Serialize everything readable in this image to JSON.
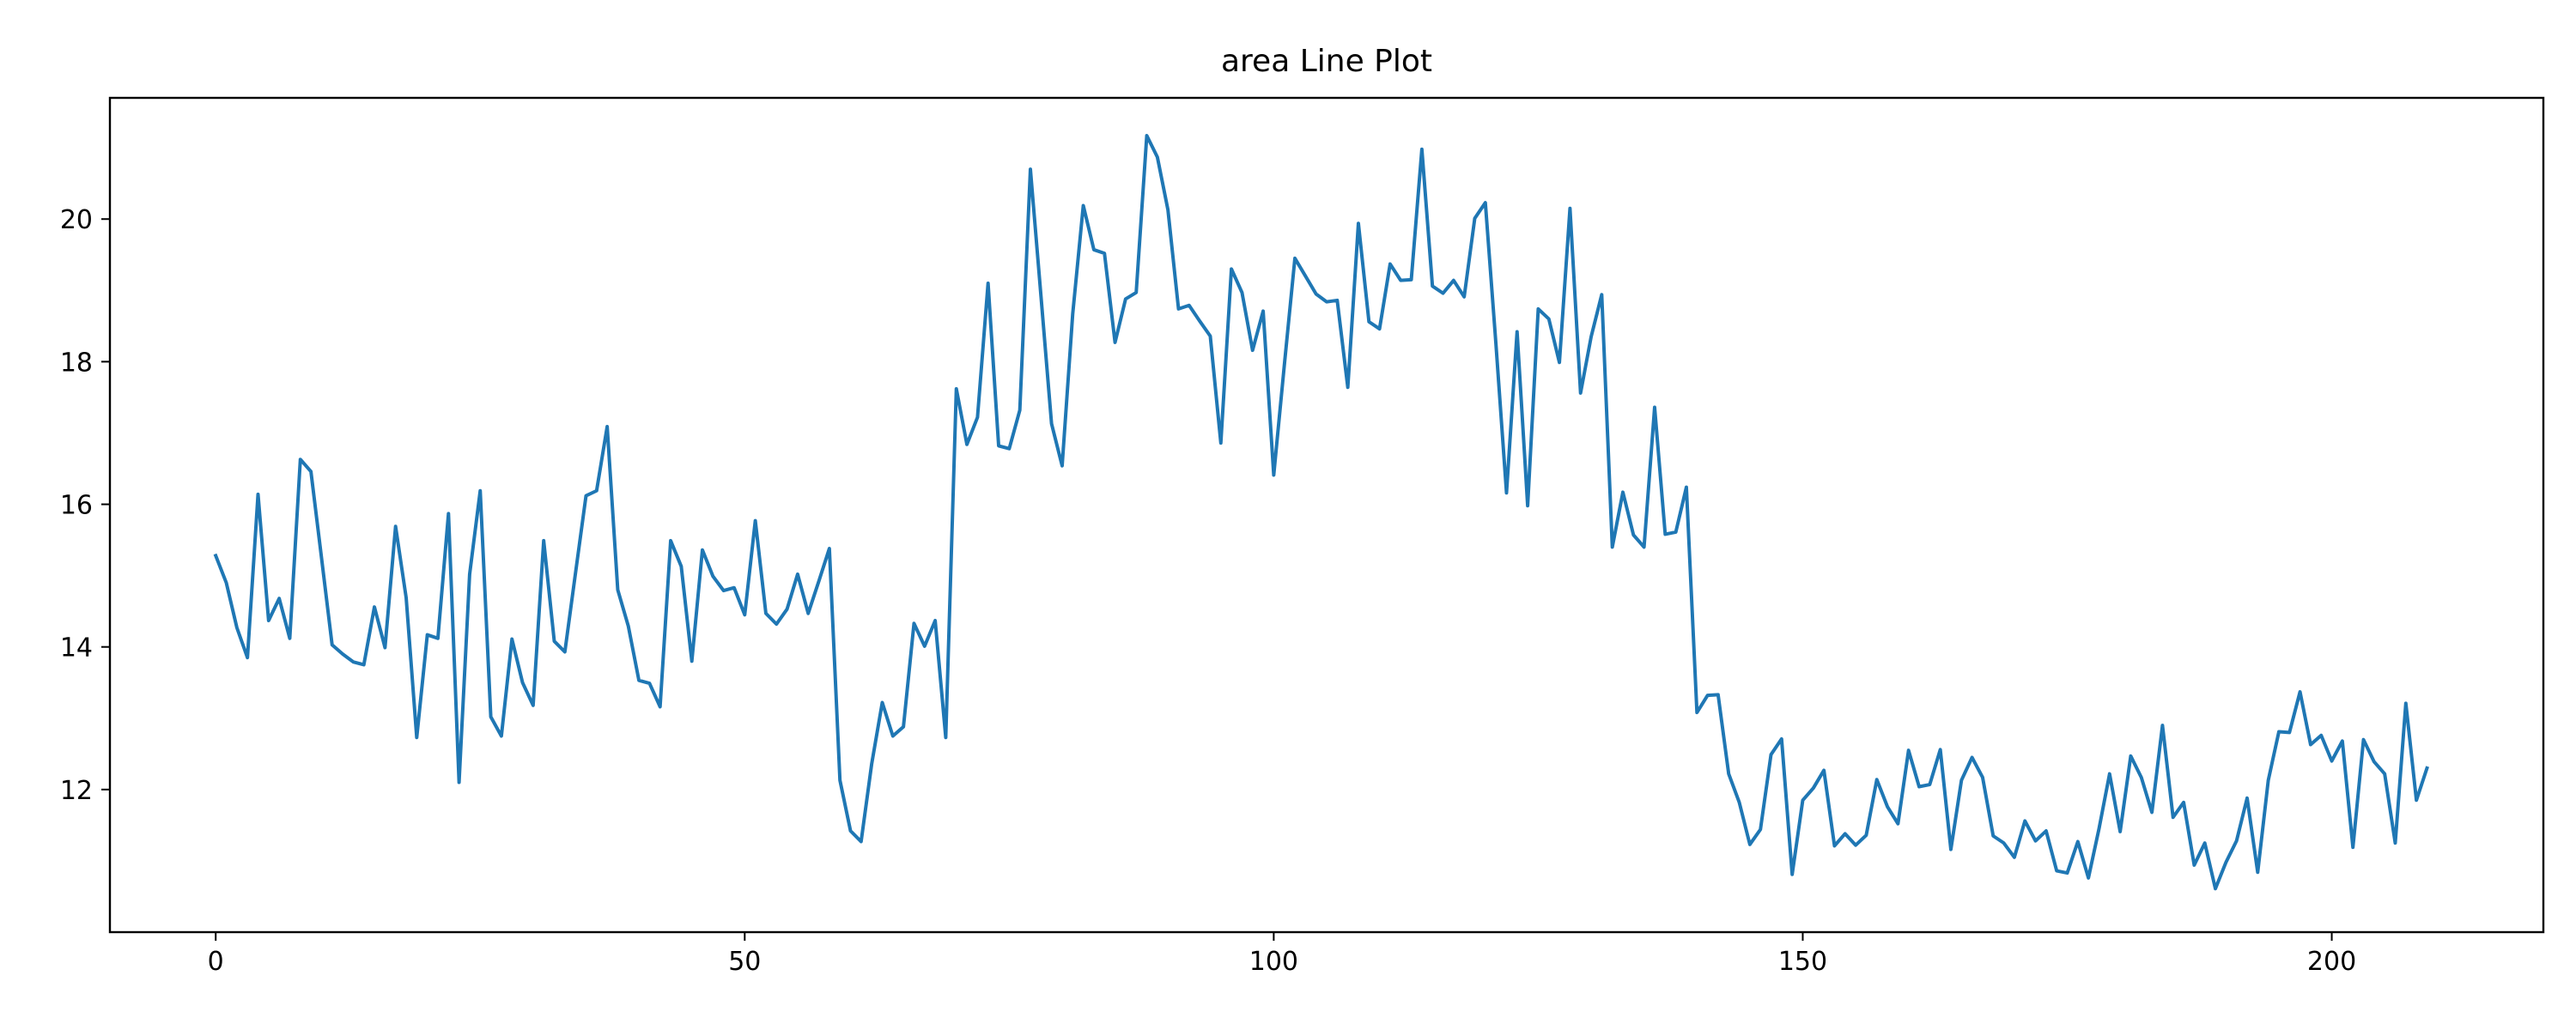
{
  "chart_data": {
    "type": "line",
    "title": "area Line Plot",
    "xlabel": "",
    "ylabel": "",
    "xlim": [
      -10,
      220
    ],
    "ylim": [
      10.0,
      21.7
    ],
    "x_ticks": [
      0,
      50,
      100,
      150,
      200
    ],
    "y_ticks": [
      12,
      14,
      16,
      18,
      20
    ],
    "grid": false,
    "line_color": "#1f77b4",
    "series": [
      {
        "x_start": 0,
        "x_step": 1,
        "values": [
          15.28,
          14.9,
          14.27,
          13.85,
          16.14,
          14.37,
          14.68,
          14.12,
          16.63,
          16.46,
          15.25,
          14.03,
          13.9,
          13.79,
          13.75,
          14.56,
          13.99,
          15.69,
          14.69,
          12.73,
          14.17,
          14.12,
          15.87,
          12.1,
          15.02,
          16.19,
          13.02,
          12.75,
          14.11,
          13.5,
          13.18,
          15.49,
          14.08,
          13.93,
          15.03,
          16.12,
          16.19,
          17.09,
          14.8,
          14.29,
          13.53,
          13.49,
          13.16,
          15.49,
          15.13,
          13.8,
          15.36,
          14.99,
          14.79,
          14.83,
          14.45,
          15.77,
          14.47,
          14.32,
          14.53,
          15.02,
          14.47,
          14.92,
          15.38,
          12.13,
          11.42,
          11.27,
          12.36,
          13.22,
          12.75,
          12.88,
          14.33,
          14.01,
          14.37,
          12.73,
          17.62,
          16.84,
          17.22,
          19.1,
          16.82,
          16.78,
          17.32,
          20.7,
          18.92,
          17.13,
          16.54,
          18.67,
          20.19,
          19.57,
          19.52,
          18.27,
          18.88,
          18.97,
          21.17,
          20.87,
          20.13,
          18.74,
          18.79,
          18.57,
          18.36,
          16.86,
          19.3,
          18.97,
          18.16,
          18.71,
          16.41,
          17.95,
          19.45,
          19.2,
          18.95,
          18.84,
          18.86,
          17.64,
          19.94,
          18.56,
          18.46,
          19.37,
          19.14,
          19.15,
          20.98,
          19.06,
          18.96,
          19.14,
          18.91,
          20.01,
          20.23,
          18.25,
          16.16,
          18.42,
          15.98,
          18.74,
          18.6,
          17.99,
          20.15,
          17.56,
          18.35,
          18.94,
          15.4,
          16.17,
          15.57,
          15.4,
          17.36,
          15.58,
          15.61,
          16.24,
          13.08,
          13.32,
          13.33,
          12.22,
          11.82,
          11.23,
          11.44,
          12.49,
          12.71,
          10.81,
          11.85,
          12.02,
          12.27,
          11.21,
          11.38,
          11.22,
          11.36,
          12.14,
          11.76,
          11.52,
          12.55,
          12.04,
          12.07,
          12.56,
          11.16,
          12.13,
          12.45,
          12.17,
          11.35,
          11.25,
          11.05,
          11.56,
          11.28,
          11.42,
          10.86,
          10.83,
          11.27,
          10.76,
          11.45,
          12.22,
          11.41,
          12.47,
          12.17,
          11.68,
          12.9,
          11.61,
          11.82,
          10.94,
          11.25,
          10.61,
          10.98,
          11.28,
          11.88,
          10.84,
          12.13,
          12.81,
          12.8,
          13.37,
          12.63,
          12.76,
          12.4,
          12.68,
          11.19,
          12.7,
          12.39,
          12.22,
          11.25,
          13.21,
          11.85,
          12.3
        ]
      }
    ]
  }
}
